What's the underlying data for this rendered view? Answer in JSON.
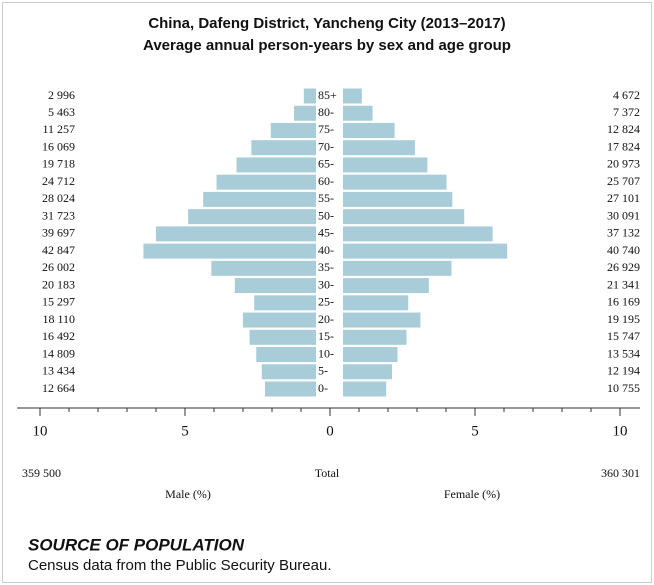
{
  "chart_data": {
    "type": "pyramid",
    "title": "China, Dafeng District, Yancheng City (2013–2017)",
    "subtitle": "Average annual person-years by sex and age group",
    "categories": [
      "0-",
      "5-",
      "10-",
      "15-",
      "20-",
      "25-",
      "30-",
      "35-",
      "40-",
      "45-",
      "50-",
      "55-",
      "60-",
      "65-",
      "70-",
      "75-",
      "80-",
      "85+"
    ],
    "series": [
      {
        "name": "Male (%)",
        "side": "left",
        "color": "#a8cdd9",
        "values": [
          1.76,
          1.87,
          2.06,
          2.29,
          2.52,
          2.13,
          2.8,
          3.61,
          5.95,
          5.52,
          4.41,
          3.89,
          3.43,
          2.74,
          2.23,
          1.56,
          0.76,
          0.42
        ],
        "count_labels": [
          "12 664",
          "13 434",
          "14 809",
          "16 492",
          "18 110",
          "15 297",
          "20 183",
          "26 002",
          "42 847",
          "39 697",
          "31 723",
          "28 024",
          "24 712",
          "19 718",
          "16 069",
          "11 257",
          "5 463",
          "2 996"
        ],
        "total_label": "359 500"
      },
      {
        "name": "Female (%)",
        "side": "right",
        "color": "#a8cdd9",
        "values": [
          1.49,
          1.69,
          1.88,
          2.19,
          2.67,
          2.25,
          2.96,
          3.74,
          5.66,
          5.16,
          4.18,
          3.77,
          3.57,
          2.91,
          2.48,
          1.78,
          1.02,
          0.65
        ],
        "count_labels": [
          "10 755",
          "12 194",
          "13 534",
          "15 747",
          "19 195",
          "16 169",
          "21 341",
          "26 929",
          "40 740",
          "37 132",
          "30 091",
          "27 101",
          "25 707",
          "20 973",
          "17 824",
          "12 824",
          "7 372",
          "4 672"
        ],
        "total_label": "360 301"
      }
    ],
    "total_name": "Total",
    "xlim": [
      0,
      10
    ],
    "xticks": [
      0,
      5,
      10
    ],
    "minor_xticks": [
      1,
      2,
      3,
      4,
      6,
      7,
      8,
      9
    ]
  },
  "source": {
    "title": "SOURCE OF POPULATION",
    "text": "Census data from the Public Security Bureau."
  }
}
